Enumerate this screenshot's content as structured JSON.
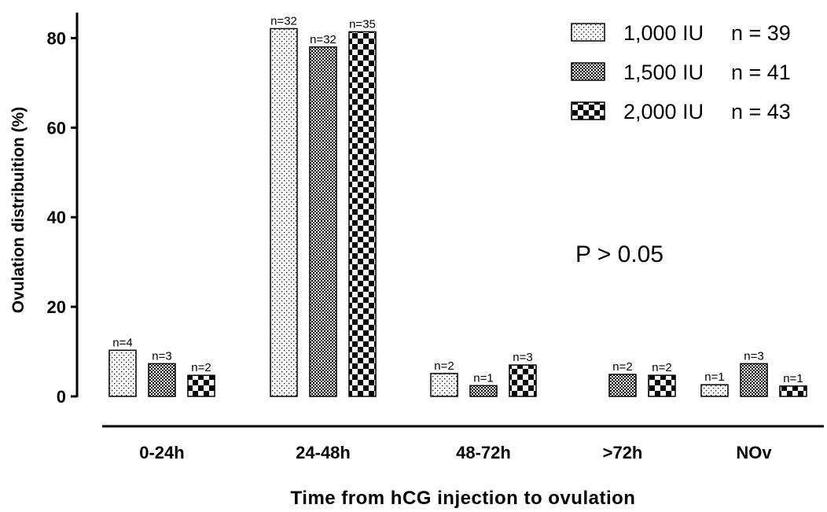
{
  "chart_data": {
    "type": "bar",
    "title": "",
    "xlabel": "Time from hCG injection to ovulation",
    "ylabel": "Ovulation distribuition  (%)",
    "ylim": [
      0,
      85
    ],
    "yticks": [
      0,
      20,
      40,
      60,
      80
    ],
    "categories": [
      "0-24h",
      "24-48h",
      "48-72h",
      ">72h",
      "NOv"
    ],
    "series": [
      {
        "name": "1,000 IU",
        "legend_n": "n = 39",
        "pattern": "dots",
        "values": [
          10.3,
          82.1,
          5.1,
          0,
          2.6
        ],
        "labels": [
          "n=4",
          "n=32",
          "n=2",
          "",
          "n=1"
        ]
      },
      {
        "name": "1,500 IU",
        "legend_n": "n = 41",
        "pattern": "fine-check",
        "values": [
          7.3,
          78.0,
          2.4,
          4.9,
          7.3
        ],
        "labels": [
          "n=3",
          "n=32",
          "n=1",
          "n=2",
          "n=3"
        ]
      },
      {
        "name": "2,000 IU",
        "legend_n": "n = 43",
        "pattern": "coarse-check",
        "values": [
          4.7,
          81.4,
          7.0,
          4.7,
          2.3
        ],
        "labels": [
          "n=2",
          "n=35",
          "n=3",
          "n=2",
          "n=1"
        ]
      }
    ],
    "annotation": "P > 0.05",
    "legend_position": "top-right",
    "grid": false
  }
}
